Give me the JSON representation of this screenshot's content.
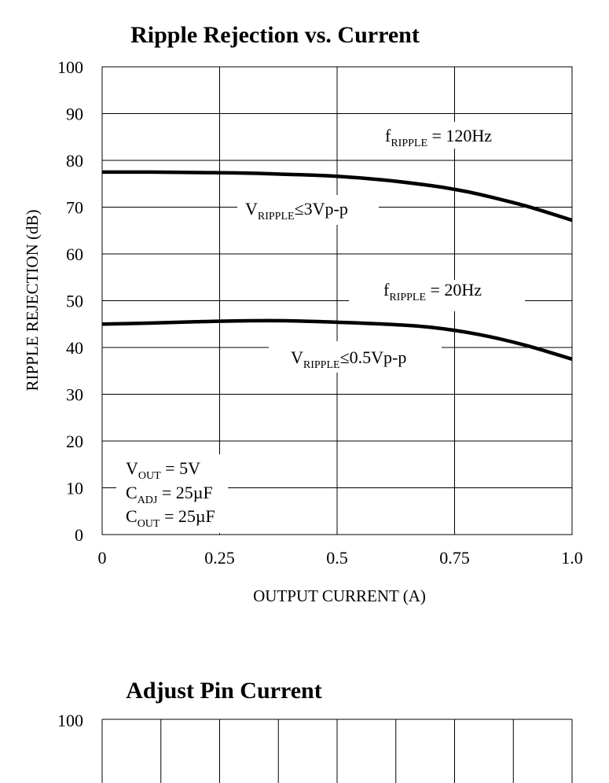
{
  "chart_data": [
    {
      "type": "line",
      "title": "Ripple Rejection vs. Current",
      "xlabel": "OUTPUT CURRENT (A)",
      "ylabel": "RIPPLE REJECTION (dB)",
      "xlim": [
        0,
        1.0
      ],
      "ylim": [
        0,
        100
      ],
      "grid": true,
      "x_ticks": [
        "0",
        "0.25",
        "0.5",
        "0.75",
        "1.0"
      ],
      "y_ticks": [
        "0",
        "10",
        "20",
        "30",
        "40",
        "50",
        "60",
        "70",
        "80",
        "90",
        "100"
      ],
      "series": [
        {
          "x": [
            0,
            0.1,
            0.2,
            0.3,
            0.4,
            0.5,
            0.6,
            0.7,
            0.75,
            0.8,
            0.9,
            1.0
          ],
          "values": [
            77.5,
            77.5,
            77.4,
            77.3,
            77.0,
            76.6,
            75.8,
            74.6,
            73.8,
            72.8,
            70.3,
            67.2
          ],
          "annotations": [
            {
              "main": "f",
              "sub": "RIPPLE",
              "rest": " = 120Hz"
            },
            {
              "main": "V",
              "sub": "RIPPLE",
              "rest": "≤3Vp-p"
            }
          ]
        },
        {
          "x": [
            0,
            0.1,
            0.2,
            0.3,
            0.4,
            0.5,
            0.6,
            0.7,
            0.8,
            0.9,
            1.0
          ],
          "values": [
            45.0,
            45.2,
            45.5,
            45.7,
            45.7,
            45.4,
            45.0,
            44.3,
            42.8,
            40.5,
            37.5
          ],
          "annotations": [
            {
              "main": "f",
              "sub": "RIPPLE",
              "rest": " = 20Hz"
            },
            {
              "main": "V",
              "sub": "RIPPLE",
              "rest": "≤0.5Vp-p"
            }
          ]
        }
      ],
      "conditions": [
        {
          "main": "V",
          "sub": "OUT",
          "rest": " = 5V"
        },
        {
          "main": "C",
          "sub": "ADJ",
          "rest": " = 25µF"
        },
        {
          "main": "C",
          "sub": "OUT",
          "rest": " = 25µF"
        }
      ]
    },
    {
      "type": "line",
      "title": "Adjust Pin Current",
      "y_ticks": [
        "100"
      ],
      "grid": true,
      "series": []
    }
  ]
}
